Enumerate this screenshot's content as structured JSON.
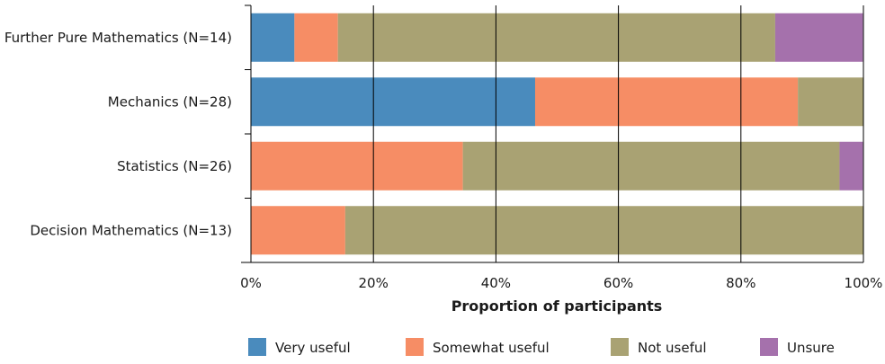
{
  "chart_data": {
    "type": "bar",
    "orientation": "horizontal",
    "stacked": true,
    "categories": [
      "Further Pure Mathematics (N=14)",
      "Mechanics (N=28)",
      "Statistics (N=26)",
      "Decision Mathematics (N=13)"
    ],
    "series": [
      {
        "name": "Very useful",
        "color": "#4a8bbd",
        "values": [
          7.1,
          46.4,
          0,
          0
        ]
      },
      {
        "name": "Somewhat useful",
        "color": "#f68d65",
        "values": [
          7.1,
          42.9,
          34.6,
          15.4
        ]
      },
      {
        "name": "Not useful",
        "color": "#a9a273",
        "values": [
          71.4,
          10.7,
          61.5,
          84.6
        ]
      },
      {
        "name": "Unsure",
        "color": "#a571ac",
        "values": [
          14.3,
          0,
          3.8,
          0
        ]
      }
    ],
    "xlabel": "Proportion of participants",
    "ylabel": "",
    "xlim": [
      0,
      100
    ],
    "xticks": [
      "0%",
      "20%",
      "40%",
      "60%",
      "80%",
      "100%"
    ],
    "grid": true,
    "legend": "bottom"
  }
}
